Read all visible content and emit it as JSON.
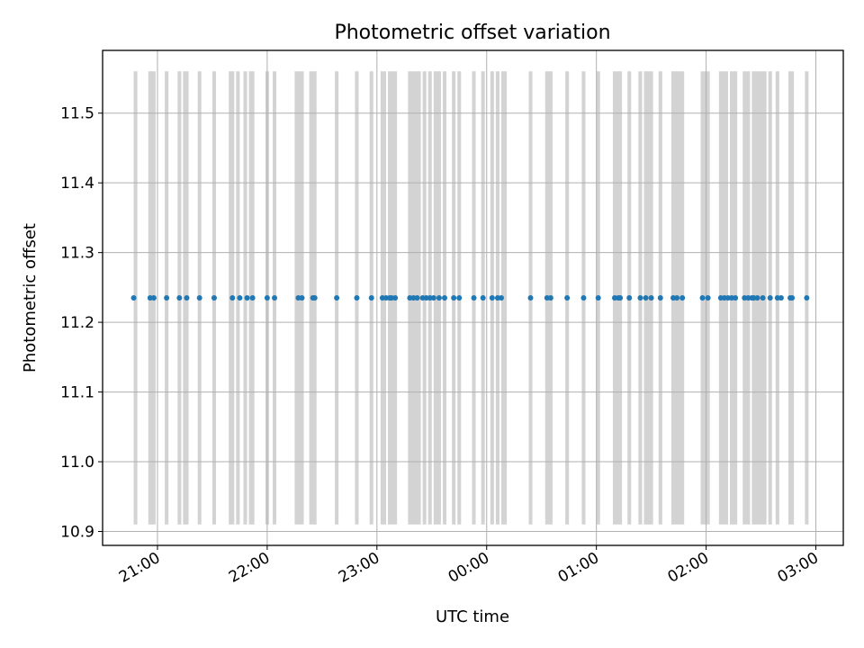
{
  "chart_data": {
    "type": "scatter",
    "title": "Photometric offset variation",
    "xlabel": "UTC time",
    "ylabel": "Photometric offset",
    "x_axis_kind": "time",
    "x_range": [
      "20:30",
      "03:15"
    ],
    "y_range": [
      10.88,
      11.59
    ],
    "grid": true,
    "legend": "none",
    "x_ticks": [
      "21:00",
      "22:00",
      "23:00",
      "00:00",
      "01:00",
      "02:00",
      "03:00"
    ],
    "y_ticks": [
      "10.9",
      "11.0",
      "11.1",
      "11.2",
      "11.3",
      "11.4",
      "11.5"
    ],
    "band_range": [
      10.91,
      11.56
    ],
    "marker_color": "#1f77b4",
    "band_color": "#d3d3d3",
    "points": [
      {
        "x": "20:47",
        "y": 11.235
      },
      {
        "x": "20:56",
        "y": 11.235
      },
      {
        "x": "20:58",
        "y": 11.235
      },
      {
        "x": "21:05",
        "y": 11.235
      },
      {
        "x": "21:12",
        "y": 11.235
      },
      {
        "x": "21:16",
        "y": 11.235
      },
      {
        "x": "21:23",
        "y": 11.235
      },
      {
        "x": "21:31",
        "y": 11.235
      },
      {
        "x": "21:41",
        "y": 11.235
      },
      {
        "x": "21:45",
        "y": 11.235
      },
      {
        "x": "21:49",
        "y": 11.235
      },
      {
        "x": "21:52",
        "y": 11.235
      },
      {
        "x": "22:00",
        "y": 11.235
      },
      {
        "x": "22:04",
        "y": 11.235
      },
      {
        "x": "22:17",
        "y": 11.235
      },
      {
        "x": "22:19",
        "y": 11.235
      },
      {
        "x": "22:25",
        "y": 11.235
      },
      {
        "x": "22:26",
        "y": 11.235
      },
      {
        "x": "22:38",
        "y": 11.235
      },
      {
        "x": "22:49",
        "y": 11.235
      },
      {
        "x": "22:57",
        "y": 11.235
      },
      {
        "x": "23:03",
        "y": 11.235
      },
      {
        "x": "23:05",
        "y": 11.235
      },
      {
        "x": "23:07",
        "y": 11.235
      },
      {
        "x": "23:08",
        "y": 11.235
      },
      {
        "x": "23:10",
        "y": 11.235
      },
      {
        "x": "23:18",
        "y": 11.235
      },
      {
        "x": "23:20",
        "y": 11.235
      },
      {
        "x": "23:22",
        "y": 11.235
      },
      {
        "x": "23:25",
        "y": 11.235
      },
      {
        "x": "23:27",
        "y": 11.235
      },
      {
        "x": "23:29",
        "y": 11.235
      },
      {
        "x": "23:31",
        "y": 11.235
      },
      {
        "x": "23:34",
        "y": 11.235
      },
      {
        "x": "23:37",
        "y": 11.235
      },
      {
        "x": "23:42",
        "y": 11.235
      },
      {
        "x": "23:45",
        "y": 11.235
      },
      {
        "x": "23:53",
        "y": 11.235
      },
      {
        "x": "23:58",
        "y": 11.235
      },
      {
        "x": "00:03",
        "y": 11.235
      },
      {
        "x": "00:06",
        "y": 11.235
      },
      {
        "x": "00:08",
        "y": 11.235
      },
      {
        "x": "00:24",
        "y": 11.235
      },
      {
        "x": "00:33",
        "y": 11.235
      },
      {
        "x": "00:35",
        "y": 11.235
      },
      {
        "x": "00:44",
        "y": 11.235
      },
      {
        "x": "00:53",
        "y": 11.235
      },
      {
        "x": "01:01",
        "y": 11.235
      },
      {
        "x": "01:10",
        "y": 11.235
      },
      {
        "x": "01:12",
        "y": 11.235
      },
      {
        "x": "01:13",
        "y": 11.235
      },
      {
        "x": "01:18",
        "y": 11.235
      },
      {
        "x": "01:24",
        "y": 11.235
      },
      {
        "x": "01:27",
        "y": 11.235
      },
      {
        "x": "01:30",
        "y": 11.235
      },
      {
        "x": "01:35",
        "y": 11.235
      },
      {
        "x": "01:42",
        "y": 11.235
      },
      {
        "x": "01:44",
        "y": 11.235
      },
      {
        "x": "01:47",
        "y": 11.235
      },
      {
        "x": "01:58",
        "y": 11.235
      },
      {
        "x": "02:01",
        "y": 11.235
      },
      {
        "x": "02:08",
        "y": 11.235
      },
      {
        "x": "02:10",
        "y": 11.235
      },
      {
        "x": "02:12",
        "y": 11.235
      },
      {
        "x": "02:14",
        "y": 11.235
      },
      {
        "x": "02:16",
        "y": 11.235
      },
      {
        "x": "02:21",
        "y": 11.235
      },
      {
        "x": "02:23",
        "y": 11.235
      },
      {
        "x": "02:25",
        "y": 11.235
      },
      {
        "x": "02:26",
        "y": 11.235
      },
      {
        "x": "02:28",
        "y": 11.235
      },
      {
        "x": "02:31",
        "y": 11.235
      },
      {
        "x": "02:35",
        "y": 11.235
      },
      {
        "x": "02:39",
        "y": 11.235
      },
      {
        "x": "02:41",
        "y": 11.235
      },
      {
        "x": "02:46",
        "y": 11.235
      },
      {
        "x": "02:47",
        "y": 11.235
      },
      {
        "x": "02:55",
        "y": 11.235
      }
    ],
    "bands": [
      [
        "20:47",
        "20:49"
      ],
      [
        "20:55",
        "20:59"
      ],
      [
        "21:04",
        "21:06"
      ],
      [
        "21:11",
        "21:13"
      ],
      [
        "21:14",
        "21:17"
      ],
      [
        "21:22",
        "21:24"
      ],
      [
        "21:30",
        "21:32"
      ],
      [
        "21:39",
        "21:42"
      ],
      [
        "21:43",
        "21:45"
      ],
      [
        "21:47",
        "21:49"
      ],
      [
        "21:50",
        "21:53"
      ],
      [
        "21:59",
        "22:01"
      ],
      [
        "22:03",
        "22:05"
      ],
      [
        "22:15",
        "22:20"
      ],
      [
        "22:23",
        "22:27"
      ],
      [
        "22:37",
        "22:39"
      ],
      [
        "22:48",
        "22:50"
      ],
      [
        "22:56",
        "22:58"
      ],
      [
        "23:02",
        "23:05"
      ],
      [
        "23:06",
        "23:11"
      ],
      [
        "23:17",
        "23:24"
      ],
      [
        "23:25",
        "23:27"
      ],
      [
        "23:28",
        "23:30"
      ],
      [
        "23:31",
        "23:35"
      ],
      [
        "23:36",
        "23:38"
      ],
      [
        "23:41",
        "23:43"
      ],
      [
        "23:44",
        "23:46"
      ],
      [
        "23:52",
        "23:54"
      ],
      [
        "23:57",
        "23:59"
      ],
      [
        "00:02",
        "00:04"
      ],
      [
        "00:05",
        "00:07"
      ],
      [
        "00:08",
        "00:11"
      ],
      [
        "00:23",
        "00:25"
      ],
      [
        "00:32",
        "00:36"
      ],
      [
        "00:43",
        "00:45"
      ],
      [
        "00:52",
        "00:54"
      ],
      [
        "01:00",
        "01:02"
      ],
      [
        "01:09",
        "01:14"
      ],
      [
        "01:17",
        "01:19"
      ],
      [
        "01:23",
        "01:25"
      ],
      [
        "01:26",
        "01:31"
      ],
      [
        "01:34",
        "01:36"
      ],
      [
        "01:41",
        "01:48"
      ],
      [
        "01:57",
        "02:02"
      ],
      [
        "02:07",
        "02:12"
      ],
      [
        "02:13",
        "02:17"
      ],
      [
        "02:20",
        "02:24"
      ],
      [
        "02:25",
        "02:33"
      ],
      [
        "02:34",
        "02:36"
      ],
      [
        "02:38",
        "02:40"
      ],
      [
        "02:45",
        "02:48"
      ],
      [
        "02:54",
        "02:56"
      ]
    ]
  }
}
